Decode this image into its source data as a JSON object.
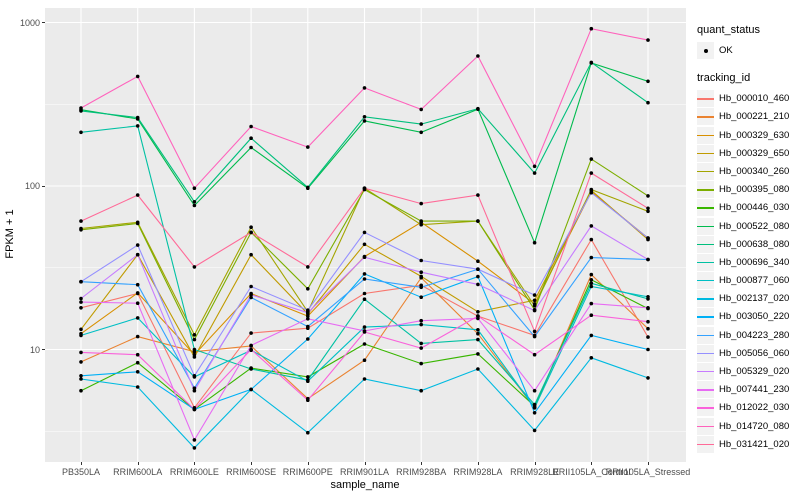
{
  "figure": {
    "background": "#FFFFFF",
    "panel_background": "#EBEBEB",
    "grid_color": "#FFFFFF",
    "tick_label_color": "#4D4D4D",
    "axis_title_color": "#000000",
    "point_color": "#000000",
    "legend_key_background": "#F2F2F2"
  },
  "legend": {
    "quant_status_title": "quant_status",
    "quant_status_items": [
      {
        "label": "OK",
        "marker": "point"
      }
    ],
    "tracking_id_title": "tracking_id"
  },
  "chart_data": {
    "type": "line",
    "title": "",
    "xlabel": "sample_name",
    "ylabel": "FPKM + 1",
    "y_scale": "log10",
    "y_major_ticks": [
      10,
      100,
      1000
    ],
    "y_tick_labels": [
      "10",
      "100",
      "1000"
    ],
    "y_minor_ticks": [
      3.162,
      31.623,
      316.228
    ],
    "ylim": [
      2.0,
      1230
    ],
    "grid": true,
    "legend_position": "right",
    "point_marker": "black-dot",
    "categories": [
      "PB350LA",
      "RRIM600LA",
      "RRIM600LE",
      "RRIM600SE",
      "RRIM600PE",
      "RRIM901LA",
      "RRIM928BA",
      "RRIM928LA",
      "RRIM928LE",
      "RRII105LA_Control",
      "RRII105LA_Stressed"
    ],
    "series": [
      {
        "name": "Hb_000010_460",
        "color": "#F8766D",
        "values": [
          18,
          22,
          4.4,
          12.6,
          13.5,
          22,
          24.7,
          16,
          12.2,
          47,
          11.9
        ]
      },
      {
        "name": "Hb_000221_210",
        "color": "#EA8331",
        "values": [
          8.4,
          12,
          9.7,
          10.5,
          5.0,
          8.6,
          27.5,
          12.5,
          4.4,
          28.7,
          13.4
        ]
      },
      {
        "name": "Hb_000329_630",
        "color": "#D89000",
        "values": [
          12.5,
          22.2,
          9.3,
          22,
          16,
          37,
          60,
          34.7,
          19,
          92,
          48
        ]
      },
      {
        "name": "Hb_000329_650",
        "color": "#C09B00",
        "values": [
          13.3,
          38,
          9.0,
          38,
          16.5,
          44,
          28,
          17,
          20,
          94,
          47
        ]
      },
      {
        "name": "Hb_000340_260",
        "color": "#A3A500",
        "values": [
          55,
          60,
          12.3,
          56,
          17,
          97,
          58,
          61,
          18.5,
          95,
          70
        ]
      },
      {
        "name": "Hb_000395_080",
        "color": "#7CAE00",
        "values": [
          54,
          59,
          11.5,
          52,
          23.5,
          95,
          61,
          61,
          17.5,
          146,
          87
        ]
      },
      {
        "name": "Hb_000446_030",
        "color": "#39B600",
        "values": [
          5.6,
          8.3,
          4.3,
          7.7,
          6.8,
          10.8,
          8.2,
          9.4,
          4.5,
          26.7,
          17.8
        ]
      },
      {
        "name": "Hb_000522_080",
        "color": "#00BB4E",
        "values": [
          293,
          257,
          76,
          172,
          97,
          250,
          213,
          295,
          45,
          565,
          437
        ]
      },
      {
        "name": "Hb_000638_080",
        "color": "#00BF7D",
        "values": [
          288,
          262,
          80,
          196,
          98,
          265,
          239,
          297,
          120,
          570,
          323
        ]
      },
      {
        "name": "Hb_000696_340",
        "color": "#00C1A3",
        "values": [
          213,
          233,
          10,
          7.6,
          6.5,
          20.3,
          10.9,
          11.5,
          4.6,
          25.4,
          20.4
        ]
      },
      {
        "name": "Hb_000877_060",
        "color": "#00BFC4",
        "values": [
          12.2,
          15.6,
          6.8,
          9.9,
          6.4,
          13.7,
          14.2,
          13.2,
          4.4,
          24.3,
          21
        ]
      },
      {
        "name": "Hb_002137_020",
        "color": "#00BAE0",
        "values": [
          6.6,
          5.9,
          2.5,
          5.7,
          3.1,
          6.6,
          5.6,
          7.6,
          3.2,
          8.9,
          6.7
        ]
      },
      {
        "name": "Hb_003050_220",
        "color": "#00B0F6",
        "values": [
          6.9,
          7.3,
          4.3,
          5.7,
          11.6,
          29,
          20.9,
          27.9,
          4.1,
          12.2,
          10
        ]
      },
      {
        "name": "Hb_004223_280",
        "color": "#35A2FF",
        "values": [
          26,
          24.9,
          5.8,
          20.8,
          13.8,
          27,
          24,
          31,
          12,
          36.5,
          35.5
        ]
      },
      {
        "name": "Hb_005056_060",
        "color": "#9590FF",
        "values": [
          26,
          43.5,
          6.9,
          24.3,
          17.4,
          52,
          35,
          31,
          21.5,
          91,
          48
        ]
      },
      {
        "name": "Hb_005329_020",
        "color": "#C77CFF",
        "values": [
          20.5,
          38,
          5.6,
          21.6,
          16.8,
          36.7,
          29.7,
          25,
          17.3,
          57,
          35.5
        ]
      },
      {
        "name": "Hb_007441_230",
        "color": "#E76BF3",
        "values": [
          19.5,
          19.2,
          2.8,
          10.6,
          15.4,
          13,
          15,
          15.5,
          5.6,
          19.1,
          18
        ]
      },
      {
        "name": "Hb_012022_030",
        "color": "#FA62DB",
        "values": [
          9.6,
          9.3,
          4.3,
          10,
          4.9,
          12.8,
          10.2,
          16,
          9.3,
          16.2,
          14.8
        ]
      },
      {
        "name": "Hb_014720_080",
        "color": "#FF62BC",
        "values": [
          300,
          468,
          97,
          231,
          173,
          398,
          294,
          624,
          132,
          917,
          780
        ]
      },
      {
        "name": "Hb_031421_020",
        "color": "#FF6A98",
        "values": [
          61,
          88,
          32,
          52,
          32,
          97,
          78,
          88,
          12.9,
          120,
          73
        ]
      }
    ]
  }
}
